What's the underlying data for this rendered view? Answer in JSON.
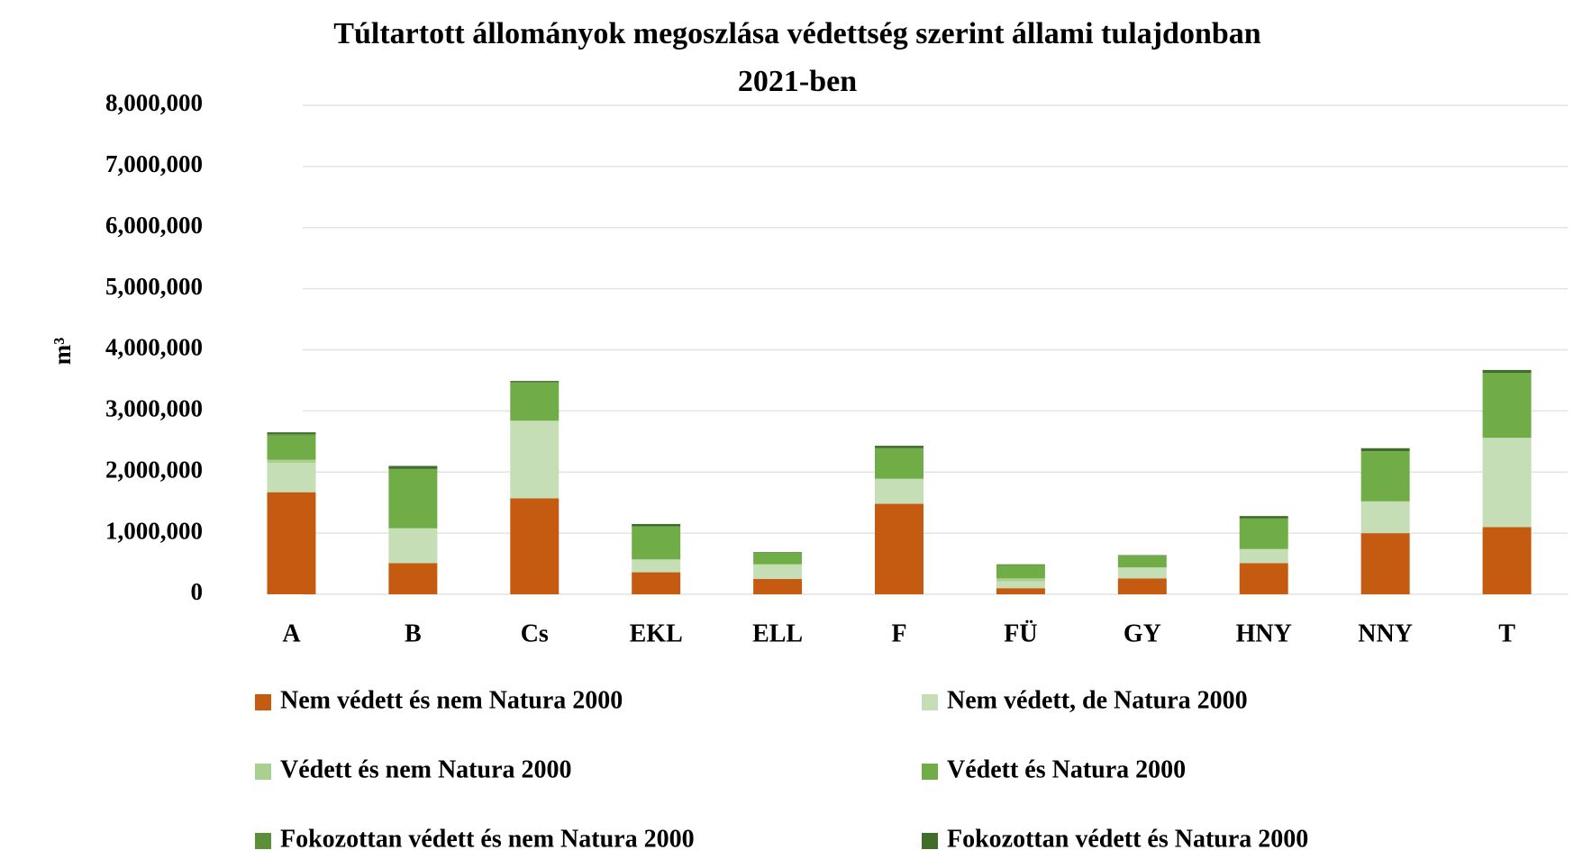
{
  "chart_data": {
    "type": "stacked_bar",
    "title": "Túltartott állományok megoszlása védettség szerint állami tulajdonban",
    "subtitle": "2021-ben",
    "y_label": "m³",
    "categories": [
      "A",
      "B",
      "Cs",
      "EKL",
      "ELL",
      "F",
      "FÜ",
      "GY",
      "HNY",
      "NNY",
      "T"
    ],
    "series": [
      {
        "name": "Nem védett és nem Natura 2000",
        "color": "#c55a11",
        "values": [
          1670000,
          510000,
          1570000,
          360000,
          250000,
          1480000,
          100000,
          260000,
          510000,
          1000000,
          1100000
        ]
      },
      {
        "name": "Nem védett, de Natura 2000",
        "color": "#c5deb5",
        "values": [
          480000,
          570000,
          1270000,
          210000,
          240000,
          410000,
          110000,
          180000,
          230000,
          520000,
          1460000
        ]
      },
      {
        "name": "Védett és nem Natura 2000",
        "color": "#a9d08e",
        "values": [
          50000,
          0,
          0,
          0,
          0,
          0,
          50000,
          0,
          0,
          0,
          0
        ]
      },
      {
        "name": "Védett és Natura 2000",
        "color": "#70ad47",
        "values": [
          400000,
          970000,
          630000,
          540000,
          190000,
          500000,
          220000,
          190000,
          500000,
          820000,
          1060000
        ]
      },
      {
        "name": "Fokozottan védett és nem Natura 2000",
        "color": "#5b8f3a",
        "values": [
          20000,
          0,
          0,
          0,
          0,
          0,
          0,
          0,
          0,
          0,
          0
        ]
      },
      {
        "name": "Fokozottan védett és Natura 2000",
        "color": "#3f6e2a",
        "values": [
          30000,
          50000,
          20000,
          40000,
          10000,
          40000,
          10000,
          10000,
          40000,
          50000,
          50000
        ]
      }
    ],
    "ylim": [
      0,
      8000000
    ],
    "yticks": [
      0,
      {
        "value": 1000000,
        "label": "1,000,000"
      },
      {
        "value": 2000000,
        "label": "2,000,000"
      },
      {
        "value": 3000000,
        "label": "3,000,000"
      },
      {
        "value": 4000000,
        "label": "4,000,000"
      },
      {
        "value": 5000000,
        "label": "5,000,000"
      },
      {
        "value": 6000000,
        "label": "6,000,000"
      },
      {
        "value": 7000000,
        "label": "7,000,000"
      },
      {
        "value": 8000000,
        "label": "8,000,000"
      }
    ],
    "grid": true,
    "legend": "bottom"
  }
}
